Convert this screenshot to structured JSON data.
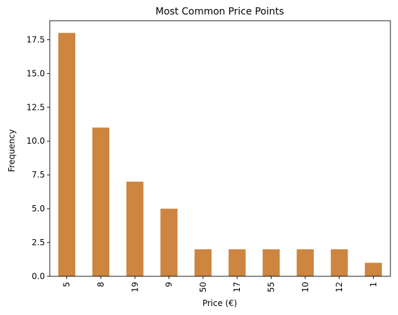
{
  "chart_data": {
    "type": "bar",
    "title": "Most Common Price Points",
    "xlabel": "Price (€)",
    "ylabel": "Frequency",
    "categories": [
      "5",
      "8",
      "19",
      "9",
      "50",
      "17",
      "55",
      "10",
      "12",
      "1"
    ],
    "values": [
      18,
      11,
      7,
      5,
      2,
      2,
      2,
      2,
      2,
      1
    ],
    "ylim": [
      0,
      18.9
    ],
    "yticks": [
      0.0,
      2.5,
      5.0,
      7.5,
      10.0,
      12.5,
      15.0,
      17.5
    ],
    "ytick_labels": [
      "0.0",
      "2.5",
      "5.0",
      "7.5",
      "10.0",
      "12.5",
      "15.0",
      "17.5"
    ],
    "bar_color": "#cd853f",
    "grid": false,
    "legend": "none"
  }
}
